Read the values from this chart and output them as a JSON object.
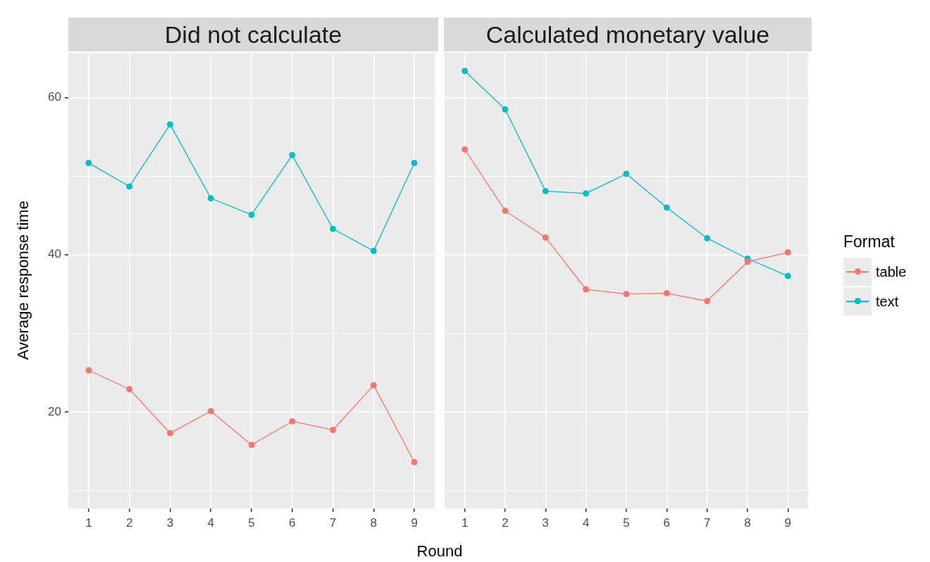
{
  "chart_data": [
    {
      "type": "line",
      "title": "Did not calculate",
      "xlabel": "Round",
      "ylabel": "Average response time",
      "categories": [
        "1",
        "2",
        "3",
        "4",
        "5",
        "6",
        "7",
        "8",
        "9"
      ],
      "series": [
        {
          "color": "#f8766d",
          "values": [
            25.3,
            22.9,
            17.3,
            20.1,
            15.8,
            18.8,
            17.7,
            23.4,
            13.6
          ]
        },
        {
          "color": "#00bfc4",
          "values": [
            51.7,
            48.7,
            56.6,
            47.2,
            45.1,
            52.7,
            43.3,
            40.5,
            51.7
          ]
        }
      ],
      "ylim": [
        7.7,
        65.7
      ],
      "yticks": [
        {
          "value": 10,
          "label": null
        },
        20,
        {
          "value": 30,
          "label": null
        },
        40,
        {
          "value": 50,
          "label": null
        },
        60
      ],
      "grid": true,
      "marker": "circle",
      "legend": false
    },
    {
      "type": "line",
      "title": "Calculated monetary value",
      "categories": [
        "1",
        "2",
        "3",
        "4",
        "5",
        "6",
        "7",
        "8",
        "9"
      ],
      "series": [
        {
          "name": "table",
          "color": "#f8766d",
          "values": [
            53.4,
            45.6,
            42.2,
            35.6,
            35.0,
            35.1,
            34.1,
            39.1,
            40.3
          ]
        },
        {
          "name": "text",
          "color": "#00bfc4",
          "values": [
            63.4,
            58.5,
            48.1,
            47.8,
            50.3,
            46.0,
            42.1,
            39.5,
            37.3
          ]
        }
      ],
      "ylim": [
        7.7,
        65.7
      ],
      "yticks": [
        {
          "value": 10,
          "label": null
        },
        20,
        {
          "value": 30,
          "label": null
        },
        40,
        {
          "value": 50,
          "label": null
        },
        60
      ],
      "grid": true,
      "marker": "circle",
      "tick_labels": "x",
      "legend": "right",
      "legend_title": "Format"
    }
  ]
}
